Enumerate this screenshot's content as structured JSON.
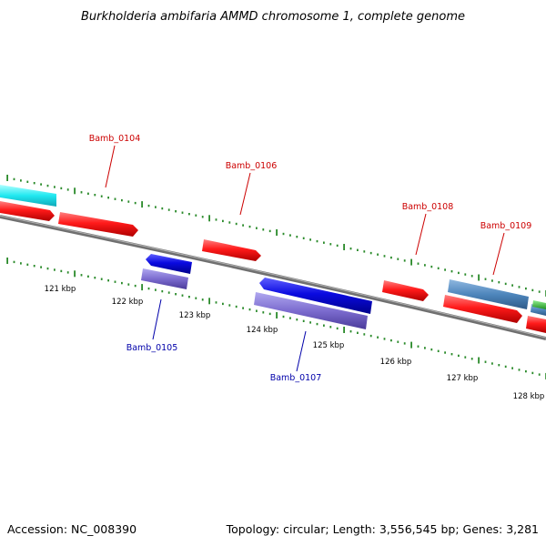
{
  "title": "Burkholderia ambifaria AMMD chromosome 1, complete genome",
  "footer": {
    "accession": "Accession: NC_008390",
    "summary": "Topology: circular; Length: 3,556,545 bp; Genes: 3,281"
  },
  "ticks": [
    "121 kbp",
    "122 kbp",
    "123 kbp",
    "124 kbp",
    "125 kbp",
    "126 kbp",
    "127 kbp",
    "128 kbp"
  ],
  "genes_top": [
    "Bamb_0104",
    "Bamb_0106",
    "Bamb_0108",
    "Bamb_0109"
  ],
  "genes_bottom": [
    "Bamb_0105",
    "Bamb_0107"
  ],
  "colors": {
    "forward_cds": "#ff2020",
    "reverse_cds": "#1010e0",
    "reverse_rna": "#8070d0",
    "cyan_feature": "#20e0f0",
    "steel_feature": "#5890c0",
    "green_feature": "#40c040",
    "dashes": "#2a8a2a",
    "backbone": "#808080",
    "top_label": "#cc0000",
    "bottom_label": "#0000aa"
  }
}
